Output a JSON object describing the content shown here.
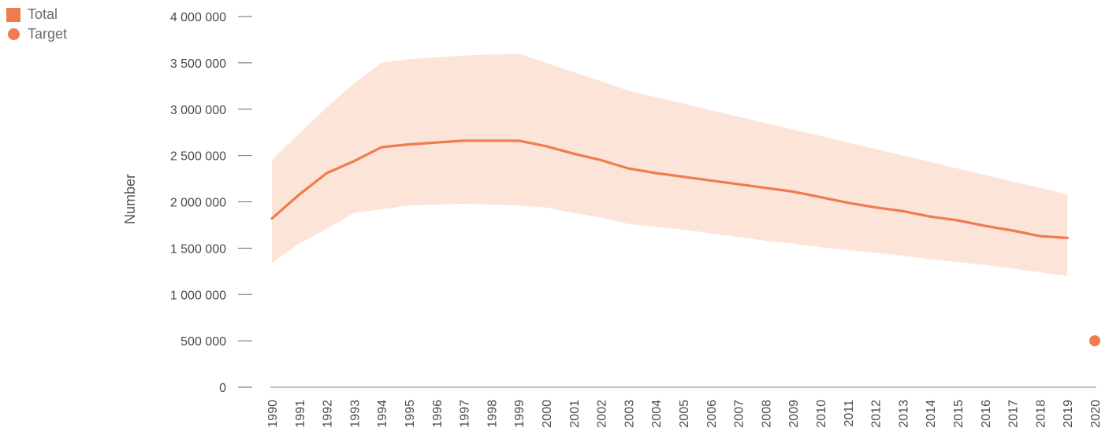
{
  "legend": {
    "items": [
      {
        "label": "Total",
        "shape": "square",
        "color": "#f07b4f"
      },
      {
        "label": "Target",
        "shape": "circle",
        "color": "#f07b4f"
      }
    ]
  },
  "chart_data": {
    "type": "line",
    "title": "",
    "xlabel": "",
    "ylabel": "Number",
    "x": [
      1990,
      1991,
      1992,
      1993,
      1994,
      1995,
      1996,
      1997,
      1998,
      1999,
      2000,
      2001,
      2002,
      2003,
      2004,
      2005,
      2006,
      2007,
      2008,
      2009,
      2010,
      2011,
      2012,
      2013,
      2014,
      2015,
      2016,
      2017,
      2018,
      2019,
      2020
    ],
    "ylim": [
      0,
      4000000
    ],
    "yticks": [
      0,
      500000,
      1000000,
      1500000,
      2000000,
      2500000,
      3000000,
      3500000,
      4000000
    ],
    "ytick_labels": [
      "0",
      "500 000",
      "1 000 000",
      "1 500 000",
      "2 000 000",
      "2 500 000",
      "3 000 000",
      "3 500 000",
      "4 000 000"
    ],
    "legend_position": "top-left",
    "grid": false,
    "series": [
      {
        "name": "Total",
        "x": [
          1990,
          1991,
          1992,
          1993,
          1994,
          1995,
          1996,
          1997,
          1998,
          1999,
          2000,
          2001,
          2002,
          2003,
          2004,
          2005,
          2006,
          2007,
          2008,
          2009,
          2010,
          2011,
          2012,
          2013,
          2014,
          2015,
          2016,
          2017,
          2018,
          2019
        ],
        "values": [
          1820000,
          2080000,
          2310000,
          2440000,
          2590000,
          2620000,
          2640000,
          2660000,
          2660000,
          2660000,
          2600000,
          2520000,
          2450000,
          2360000,
          2310000,
          2270000,
          2230000,
          2190000,
          2150000,
          2110000,
          2050000,
          1990000,
          1940000,
          1900000,
          1840000,
          1800000,
          1740000,
          1690000,
          1630000,
          1610000
        ],
        "lower": [
          1340000,
          1550000,
          1710000,
          1880000,
          1920000,
          1960000,
          1970000,
          1980000,
          1970000,
          1960000,
          1940000,
          1880000,
          1830000,
          1760000,
          1730000,
          1700000,
          1660000,
          1620000,
          1580000,
          1550000,
          1510000,
          1480000,
          1450000,
          1420000,
          1380000,
          1350000,
          1320000,
          1280000,
          1240000,
          1200000
        ],
        "upper": [
          2450000,
          2740000,
          3020000,
          3280000,
          3500000,
          3540000,
          3560000,
          3580000,
          3590000,
          3600000,
          3500000,
          3400000,
          3300000,
          3200000,
          3130000,
          3060000,
          2990000,
          2920000,
          2850000,
          2780000,
          2710000,
          2640000,
          2570000,
          2500000,
          2430000,
          2360000,
          2290000,
          2220000,
          2150000,
          2080000
        ],
        "color": "#f07b4f",
        "band_color": "#fce4d8"
      },
      {
        "name": "Target",
        "x": [
          2020
        ],
        "values": [
          500000
        ],
        "color": "#f07b4f",
        "marker": "circle"
      }
    ]
  }
}
